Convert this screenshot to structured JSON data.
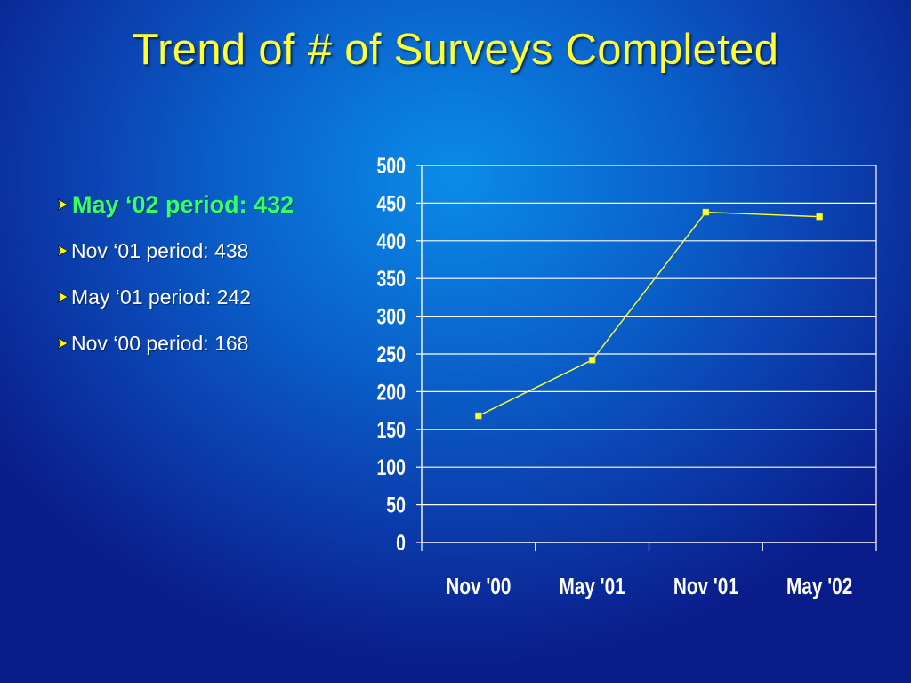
{
  "slide": {
    "title": "Trend of # of Surveys Completed"
  },
  "bullets": [
    {
      "text": "May ‘02 period: 432",
      "highlight": true
    },
    {
      "text": "Nov ‘01 period: 438",
      "highlight": false
    },
    {
      "text": "May ‘01 period: 242",
      "highlight": false
    },
    {
      "text": "Nov ‘00 period: 168",
      "highlight": false
    }
  ],
  "chart_data": {
    "type": "line",
    "title": "",
    "xlabel": "",
    "ylabel": "",
    "categories": [
      "Nov '00",
      "May '01",
      "Nov '01",
      "May '02"
    ],
    "series": [
      {
        "values": [
          168,
          242,
          438,
          432
        ]
      }
    ],
    "ylim": [
      0,
      500
    ],
    "yticks": [
      "0",
      "50",
      "100",
      "150",
      "200",
      "250",
      "300",
      "350",
      "400",
      "450",
      "500"
    ],
    "grid": true,
    "legend": "none"
  },
  "colors": {
    "title": "#ffff33",
    "highlight": "#33ff66",
    "bullet_text": "#ffffff",
    "series_line": "#ffff33",
    "gridline": "#ffffff",
    "arrow": "#ffff00"
  }
}
